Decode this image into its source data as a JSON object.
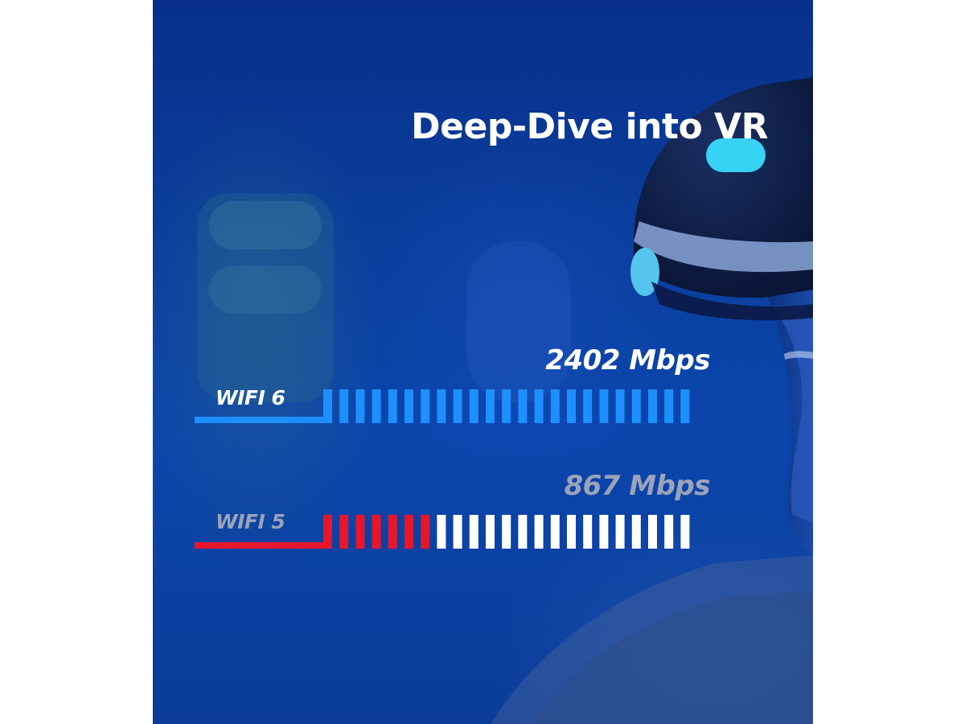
{
  "title": "Deep-Dive into VR",
  "colors": {
    "wifi6": "#1e8fff",
    "wifi5_active": "#e8162a",
    "wifi5_inactive": "#ffffff",
    "speed6_text": "#ffffff",
    "speed5_text": "#9aa3b8"
  },
  "chart_data": {
    "type": "bar",
    "total_segments": 23,
    "series": [
      {
        "name": "WIFI 6",
        "value_label": "2402 Mbps",
        "value": 2402,
        "filled_segments": 23
      },
      {
        "name": "WIFI 5",
        "value_label": "867 Mbps",
        "value": 867,
        "filled_segments": 7
      }
    ]
  }
}
